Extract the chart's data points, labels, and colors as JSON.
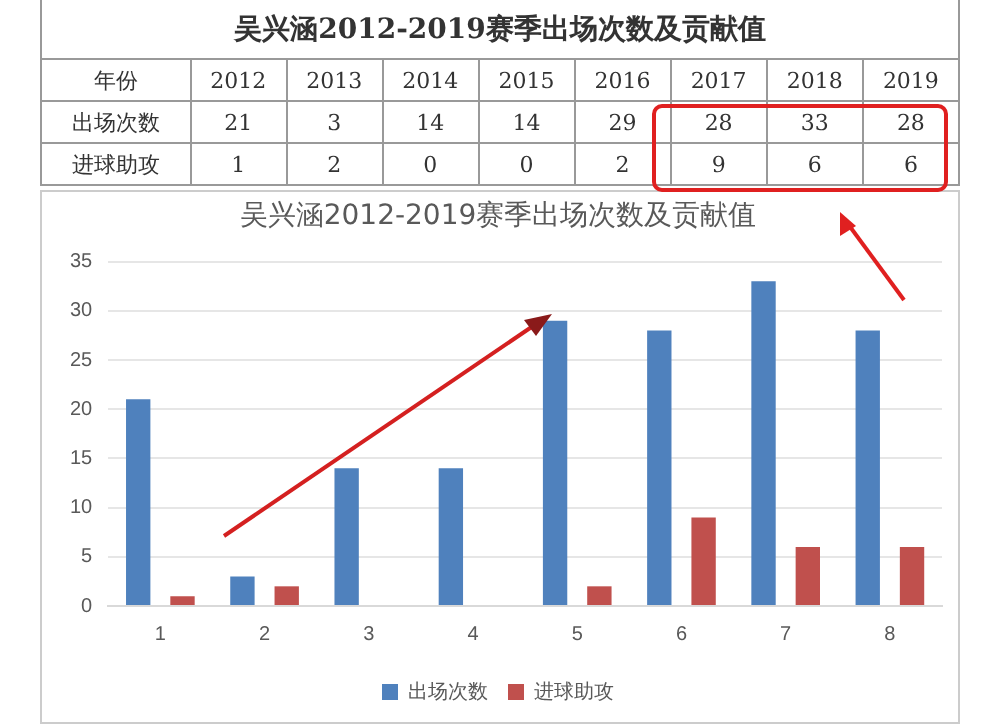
{
  "chart_data": [
    {
      "type": "heatmap",
      "title": "吴兴涵2012-2019赛季出场次数及贡献值",
      "categories": [
        "2012",
        "2013",
        "2014",
        "2015",
        "2016",
        "2017",
        "2018",
        "2019"
      ],
      "y_categories": [
        "出场次数",
        "进球助攻"
      ],
      "cells": [
        [
          21,
          3,
          14,
          14,
          29,
          28,
          33,
          28
        ],
        [
          1,
          2,
          0,
          0,
          2,
          9,
          6,
          6
        ]
      ],
      "annotations": [
        "年份"
      ],
      "data_labels": true
    },
    {
      "type": "bar",
      "title": "吴兴涵2012-2019赛季出场次数及贡献值",
      "categories": [
        "1",
        "2",
        "3",
        "4",
        "5",
        "6",
        "7",
        "8"
      ],
      "series": [
        {
          "name": "出场次数",
          "color": "#4f81bd",
          "values": [
            21,
            3,
            14,
            14,
            29,
            28,
            33,
            28
          ]
        },
        {
          "name": "进球助攻",
          "color": "#c0504d",
          "values": [
            1,
            2,
            0,
            0,
            2,
            9,
            6,
            6
          ]
        }
      ],
      "ylim": [
        0,
        35
      ],
      "yticks": [
        0,
        5,
        10,
        15,
        20,
        25,
        30,
        35
      ],
      "grid": "y",
      "legend": "bottom"
    }
  ]
}
